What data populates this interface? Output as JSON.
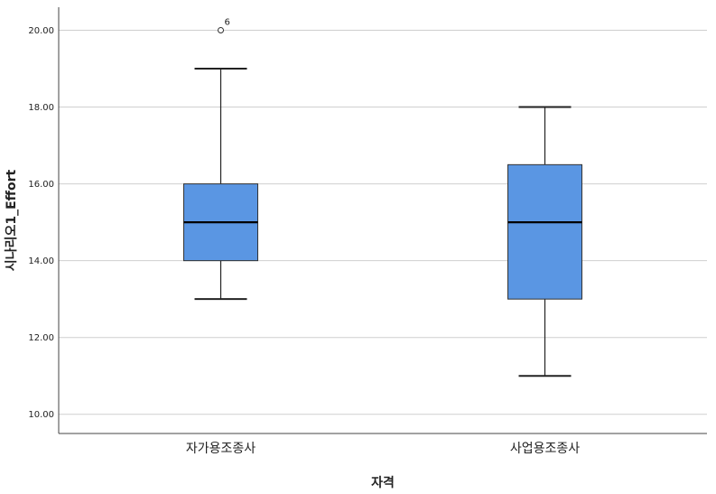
{
  "chart_data": {
    "type": "boxplot",
    "xlabel": "자격",
    "ylabel": "시나리오1_Effort",
    "ylim": [
      9.5,
      20.6
    ],
    "yticks": [
      "10.00",
      "12.00",
      "14.00",
      "16.00",
      "18.00",
      "20.00"
    ],
    "grid": "horizontal",
    "box_color": "#5a96e3",
    "categories": [
      "자가용조종사",
      "사업용조종사"
    ],
    "boxes": [
      {
        "category": "자가용조종사",
        "whisker_low": 13,
        "q1": 14,
        "median": 15,
        "q3": 16,
        "whisker_high": 19,
        "outliers": [
          {
            "value": 20,
            "label": "6"
          }
        ]
      },
      {
        "category": "사업용조종사",
        "whisker_low": 11,
        "q1": 13,
        "median": 15,
        "q3": 16.5,
        "whisker_high": 18,
        "outliers": []
      }
    ]
  }
}
